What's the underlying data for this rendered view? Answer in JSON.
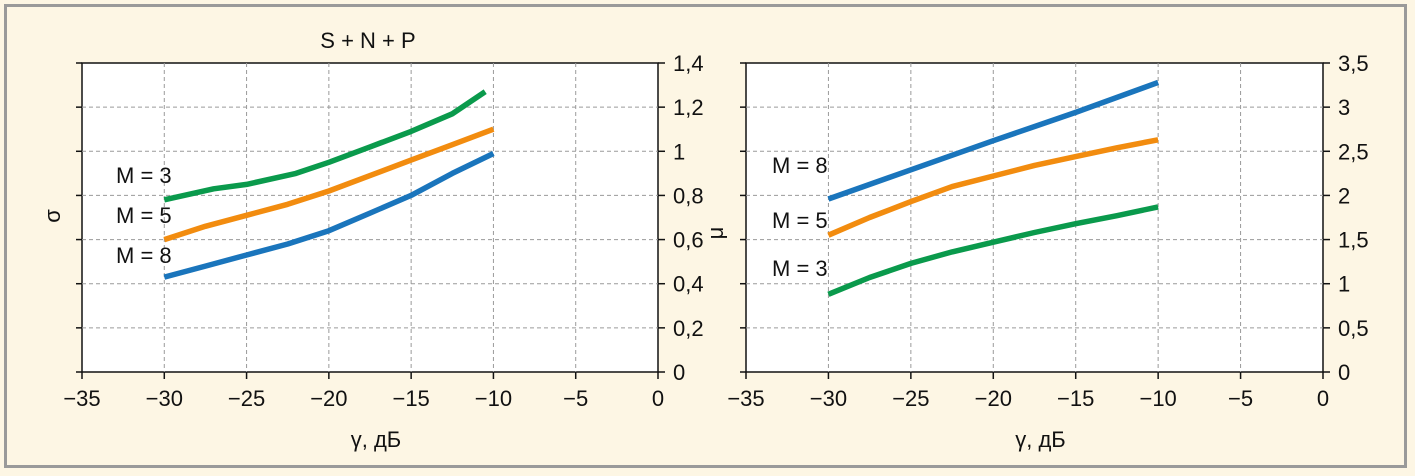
{
  "chart_data": [
    {
      "type": "line",
      "title": "S + N + P",
      "xlabel": "γ, дБ",
      "ylabel_left": "σ",
      "ylabel_right": "μ",
      "xlim": [
        -35,
        0
      ],
      "ylim": [
        0,
        1.4
      ],
      "x_ticks": [
        "−35",
        "−30",
        "−25",
        "−20",
        "−15",
        "−10",
        "−5",
        "0"
      ],
      "y_ticks": [
        "0",
        "0,2",
        "0,4",
        "0,6",
        "0,8",
        "1",
        "1,2",
        "1,4"
      ],
      "colors": {
        "M = 3": "#0a9a4c",
        "M = 5": "#f28c0f",
        "M = 8": "#1a75bc"
      },
      "series": [
        {
          "name": "M = 3",
          "x": [
            -30,
            -27,
            -25,
            -22,
            -20,
            -17.5,
            -15,
            -12.5,
            -10.5
          ],
          "y": [
            0.78,
            0.83,
            0.85,
            0.9,
            0.95,
            1.02,
            1.09,
            1.17,
            1.27
          ]
        },
        {
          "name": "M = 5",
          "x": [
            -30,
            -27.5,
            -25,
            -22.5,
            -20,
            -17.5,
            -15,
            -12.5,
            -10
          ],
          "y": [
            0.6,
            0.66,
            0.71,
            0.76,
            0.82,
            0.89,
            0.96,
            1.03,
            1.1
          ]
        },
        {
          "name": "M = 8",
          "x": [
            -30,
            -27.5,
            -25,
            -22.5,
            -20,
            -17.5,
            -15,
            -12.5,
            -10
          ],
          "y": [
            0.43,
            0.48,
            0.53,
            0.58,
            0.64,
            0.72,
            0.8,
            0.9,
            0.99
          ]
        }
      ]
    },
    {
      "type": "line",
      "xlabel": "γ, дБ",
      "xlim": [
        -35,
        0
      ],
      "ylim": [
        0,
        3.5
      ],
      "x_ticks": [
        "−35",
        "−30",
        "−25",
        "−20",
        "−15",
        "−10",
        "−5",
        "0"
      ],
      "y_ticks": [
        "0",
        "0,5",
        "1",
        "1,5",
        "2",
        "2,5",
        "3",
        "3,5"
      ],
      "colors": {
        "M = 8": "#1a75bc",
        "M = 5": "#f28c0f",
        "M = 3": "#0a9a4c"
      },
      "series": [
        {
          "name": "M = 8",
          "x": [
            -30,
            -25,
            -20,
            -15,
            -10
          ],
          "y": [
            1.96,
            2.29,
            2.62,
            2.94,
            3.28
          ]
        },
        {
          "name": "M = 5",
          "x": [
            -30,
            -27.5,
            -25,
            -22.5,
            -20,
            -17.5,
            -15,
            -12.5,
            -10
          ],
          "y": [
            1.55,
            1.75,
            1.93,
            2.1,
            2.22,
            2.34,
            2.44,
            2.54,
            2.63
          ]
        },
        {
          "name": "M = 3",
          "x": [
            -30,
            -27.5,
            -25,
            -22.5,
            -20,
            -17.5,
            -15,
            -12.5,
            -10
          ],
          "y": [
            0.88,
            1.07,
            1.23,
            1.36,
            1.47,
            1.58,
            1.68,
            1.77,
            1.87
          ]
        }
      ]
    }
  ]
}
